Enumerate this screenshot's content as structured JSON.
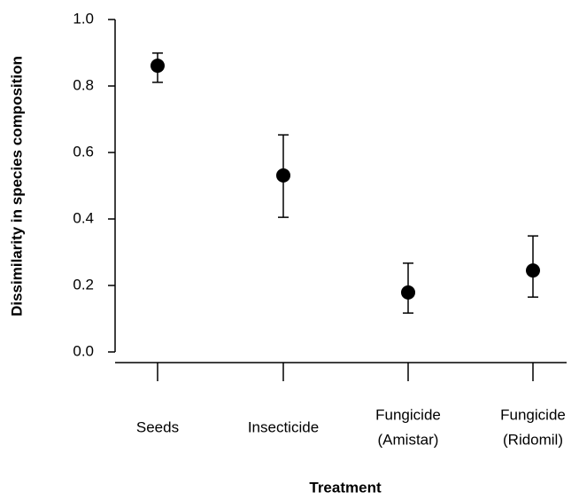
{
  "chart_data": {
    "type": "errorpoint",
    "x_label": "Treatment",
    "y_label": "Dissimilarity in species composition",
    "categories": [
      [
        "Seeds"
      ],
      [
        "Insecticide"
      ],
      [
        "Fungicide",
        "(Amistar)"
      ],
      [
        "Fungicide",
        "(Ridomil)"
      ]
    ],
    "values": [
      0.861,
      0.531,
      0.179,
      0.245
    ],
    "lower": [
      0.811,
      0.405,
      0.117,
      0.165
    ],
    "upper": [
      0.899,
      0.653,
      0.267,
      0.349
    ],
    "color": "#000000",
    "ylim": [
      0,
      1
    ],
    "yticks": [
      {
        "value": 0,
        "label": "0.0"
      },
      {
        "value": 0.2,
        "label": "0.2"
      },
      {
        "value": 0.4,
        "label": "0.4"
      },
      {
        "value": 0.6,
        "label": "0.6"
      },
      {
        "value": 0.8,
        "label": "0.8"
      },
      {
        "value": 1,
        "label": "1.0"
      }
    ]
  }
}
